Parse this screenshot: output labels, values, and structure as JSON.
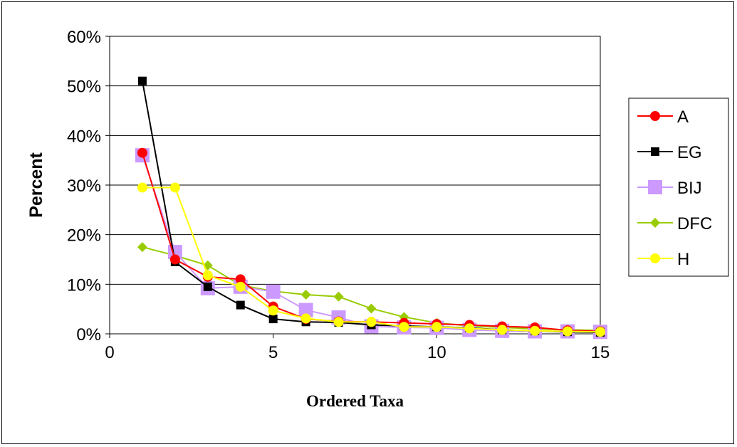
{
  "chart_data": {
    "type": "line",
    "title": "",
    "xlabel": "Ordered Taxa",
    "ylabel": "Percent",
    "xlim": [
      0,
      15
    ],
    "ylim": [
      0,
      0.6
    ],
    "x_ticks": [
      "0",
      "5",
      "10",
      "15"
    ],
    "x_tick_values": [
      0,
      5,
      10,
      15
    ],
    "y_ticks": [
      "0%",
      "10%",
      "20%",
      "30%",
      "40%",
      "50%",
      "60%"
    ],
    "y_tick_values": [
      0,
      0.1,
      0.2,
      0.3,
      0.4,
      0.5,
      0.6
    ],
    "grid": "horizontal",
    "legend_position": "right",
    "x": [
      1,
      2,
      3,
      4,
      5,
      6,
      7,
      8,
      9,
      10,
      11,
      12,
      13,
      14,
      15
    ],
    "series": [
      {
        "name": "A",
        "color": "#ff0000",
        "marker": "circle",
        "values": [
          0.365,
          0.15,
          0.115,
          0.11,
          0.055,
          0.03,
          0.025,
          0.024,
          0.022,
          0.02,
          0.018,
          0.015,
          0.013,
          0.007,
          0.005
        ]
      },
      {
        "name": "EG",
        "color": "#000000",
        "marker": "square",
        "values": [
          0.51,
          0.145,
          0.095,
          0.058,
          0.03,
          0.024,
          0.023,
          0.018,
          0.016,
          0.014,
          0.012,
          0.008,
          0.006,
          0.004,
          0.003
        ]
      },
      {
        "name": "BIJ",
        "color": "#cc99ff",
        "marker": "square-large",
        "values": [
          0.36,
          0.165,
          0.092,
          0.095,
          0.085,
          0.048,
          0.033,
          0.015,
          0.013,
          0.012,
          0.008,
          0.006,
          0.005,
          0.005,
          0.004
        ]
      },
      {
        "name": "DFC",
        "color": "#99cc00",
        "marker": "diamond",
        "values": [
          0.175,
          0.158,
          0.138,
          0.098,
          0.086,
          0.079,
          0.075,
          0.051,
          0.034,
          0.022,
          0.016,
          0.013,
          0.01,
          0.008,
          0.007
        ]
      },
      {
        "name": "H",
        "color": "#ffff00",
        "marker": "circle",
        "values": [
          0.295,
          0.295,
          0.118,
          0.095,
          0.047,
          0.031,
          0.024,
          0.024,
          0.014,
          0.014,
          0.011,
          0.008,
          0.006,
          0.005,
          0.004
        ]
      }
    ]
  }
}
